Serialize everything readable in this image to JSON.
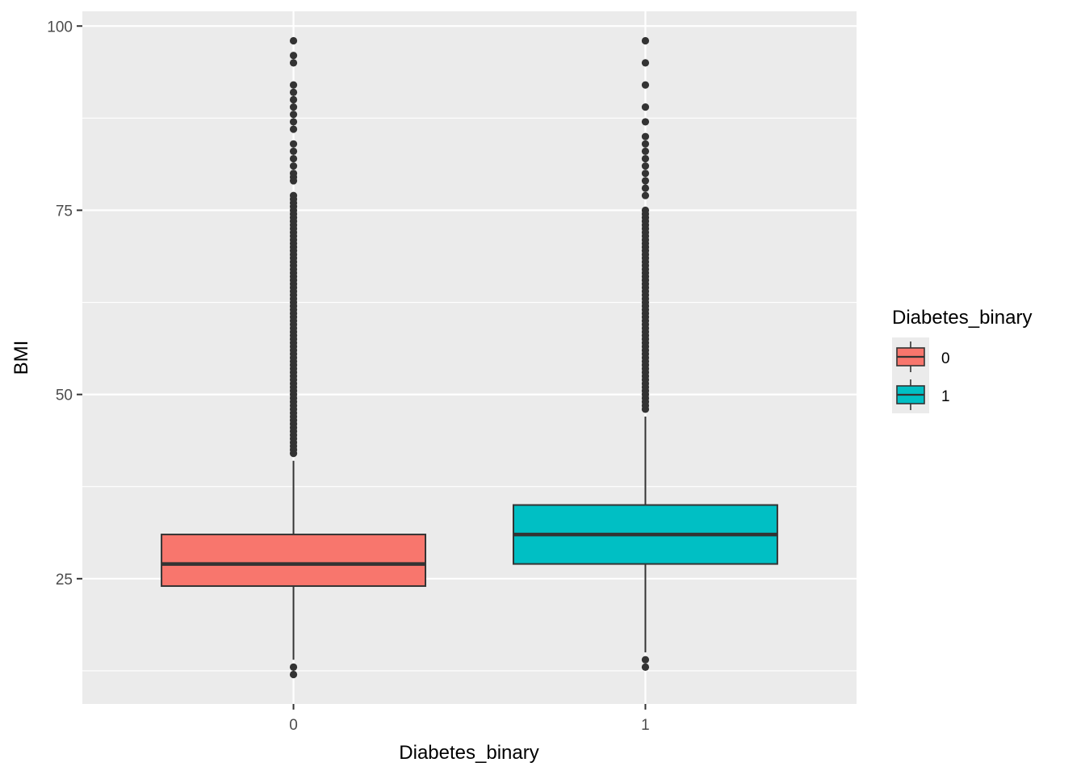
{
  "chart_data": {
    "type": "boxplot",
    "xlabel": "Diabetes_binary",
    "ylabel": "BMI",
    "ylim": [
      8,
      102
    ],
    "yticks": [
      25,
      50,
      75,
      100
    ],
    "categories": [
      "0",
      "1"
    ],
    "grid": true,
    "legend": {
      "title": "Diabetes_binary",
      "placement": "right",
      "entries": [
        {
          "label": "0",
          "color": "#F8766D"
        },
        {
          "label": "1",
          "color": "#00BFC4"
        }
      ]
    },
    "series": [
      {
        "category": "0",
        "color": "#F8766D",
        "q1": 24,
        "median": 27,
        "q3": 31,
        "whisker_low": 14,
        "whisker_high": 41,
        "outliers": [
          12,
          13,
          42,
          42.5,
          43,
          43.5,
          44,
          44.5,
          45,
          45.5,
          46,
          46.5,
          47,
          47.5,
          48,
          48.5,
          49,
          49.5,
          50,
          50.5,
          51,
          51.5,
          52,
          52.5,
          53,
          53.5,
          54,
          54.5,
          55,
          55.5,
          56,
          56.5,
          57,
          57.5,
          58,
          58.5,
          59,
          59.5,
          60,
          60.5,
          61,
          61.5,
          62,
          62.5,
          63,
          63.5,
          64,
          64.5,
          65,
          65.5,
          66,
          66.5,
          67,
          67.5,
          68,
          68.5,
          69,
          69.5,
          70,
          70.5,
          71,
          71.5,
          72,
          72.5,
          73,
          73.5,
          74,
          74.5,
          75,
          75.5,
          76,
          76.5,
          77,
          79,
          79.5,
          80,
          81,
          82,
          83,
          84,
          86,
          87,
          88,
          89,
          90,
          91,
          92,
          95,
          96,
          98
        ]
      },
      {
        "category": "1",
        "color": "#00BFC4",
        "q1": 27,
        "median": 31,
        "q3": 35,
        "whisker_low": 15,
        "whisker_high": 47,
        "outliers": [
          13,
          14,
          48,
          48.5,
          49,
          49.5,
          50,
          50.5,
          51,
          51.5,
          52,
          52.5,
          53,
          53.5,
          54,
          54.5,
          55,
          55.5,
          56,
          56.5,
          57,
          57.5,
          58,
          58.5,
          59,
          59.5,
          60,
          60.5,
          61,
          61.5,
          62,
          62.5,
          63,
          63.5,
          64,
          64.5,
          65,
          65.5,
          66,
          66.5,
          67,
          67.5,
          68,
          68.5,
          69,
          69.5,
          70,
          70.5,
          71,
          71.5,
          72,
          72.5,
          73,
          73.5,
          74,
          74.5,
          75,
          77,
          78,
          79,
          80,
          81,
          82,
          83,
          84,
          85,
          87,
          89,
          92,
          95,
          98
        ]
      }
    ]
  }
}
